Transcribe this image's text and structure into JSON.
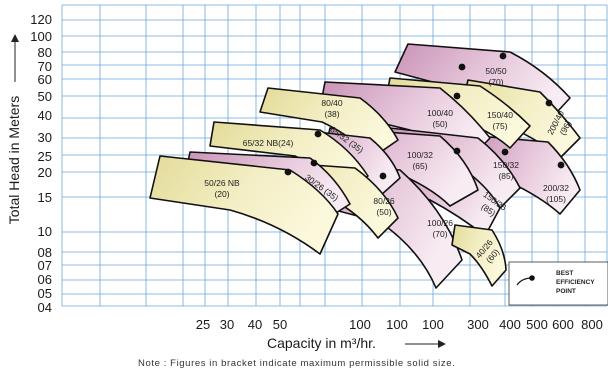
{
  "chart_data": {
    "type": "area",
    "title": "",
    "xlabel": "Capacity in m³/hr.",
    "ylabel": "Total Head in Meters",
    "note": "Note : Figures in bracket indicate maximum permissible solid size.",
    "x_tick_labels": [
      "25",
      "30",
      "40",
      "50",
      "100",
      "100",
      "100",
      "300",
      "400",
      "500",
      "600",
      "800"
    ],
    "y_tick_labels": [
      "120",
      "100",
      "80",
      "70",
      "60",
      "50",
      "40",
      "30",
      "25",
      "20",
      "15",
      "10",
      "08",
      "07",
      "06",
      "05",
      "04"
    ],
    "colors": {
      "grid": "#6aa8dc",
      "yellow_fill": "#e8e0a0",
      "yellow_highlight": "#fbf8dc",
      "pink_fill": "#cf9ebf",
      "pink_highlight": "#f8ecf3",
      "outline": "#111111",
      "point": "#111111"
    },
    "pump_models": [
      {
        "label": "50/26 NB",
        "solid": "(20)",
        "color": "yellow"
      },
      {
        "label": "30/26",
        "solid": "(35)",
        "color": "pink"
      },
      {
        "label": "65/32 NB",
        "solid": "(24)",
        "color": "yellow"
      },
      {
        "label": "65/32",
        "solid": "(35)",
        "color": "pink"
      },
      {
        "label": "80/40",
        "solid": "(38)",
        "color": "yellow"
      },
      {
        "label": "80/26",
        "solid": "(50)",
        "color": "yellow"
      },
      {
        "label": "100/26",
        "solid": "(70)",
        "color": "pink"
      },
      {
        "label": "100/32",
        "solid": "(65)",
        "color": "pink"
      },
      {
        "label": "100/40",
        "solid": "(50)",
        "color": "pink"
      },
      {
        "label": "150/26",
        "solid": "(85)",
        "color": "pink"
      },
      {
        "label": "150/32",
        "solid": "(85)",
        "color": "pink"
      },
      {
        "label": "150/40",
        "solid": "(75)",
        "color": "yellow"
      },
      {
        "label": "50/50",
        "solid": "(70)",
        "color": "pink"
      },
      {
        "label": "200/40",
        "solid": "(96)",
        "color": "yellow"
      },
      {
        "label": "200/32",
        "solid": "(105)",
        "color": "pink"
      },
      {
        "label": "40/26",
        "solid": "(60)",
        "color": "yellow"
      }
    ],
    "legend": {
      "lines": [
        "BEST",
        "EFFICIENCY",
        "POINT"
      ],
      "placement": "bottom-right"
    }
  }
}
